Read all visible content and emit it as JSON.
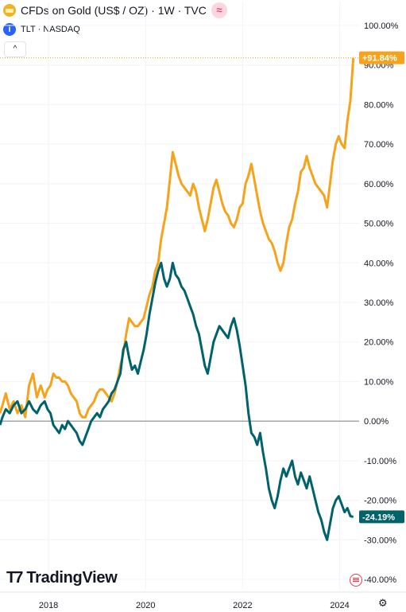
{
  "header": {
    "title": "CFDs on Gold (US$ / OZ) · 1W · TVC",
    "subtitle": "TLT · NASDAQ"
  },
  "colors": {
    "gold": "#f7a21b",
    "tlt": "#00636b",
    "zero_line": "#7e7e7e",
    "ref_line": "#f7a21b",
    "grid": "#f0f3fa"
  },
  "branding": {
    "logo_text": "TradingView"
  },
  "chart_data": {
    "type": "line",
    "xlim": [
      2017.0,
      2024.4
    ],
    "ylim": [
      -40,
      100
    ],
    "y_ticks": [
      "100.00%",
      "90.00%",
      "80.00%",
      "70.00%",
      "60.00%",
      "50.00%",
      "40.00%",
      "30.00%",
      "20.00%",
      "10.00%",
      "0.00%",
      "-10.00%",
      "-20.00%",
      "-30.00%",
      "-40.00%"
    ],
    "y_tick_values": [
      100,
      90,
      80,
      70,
      60,
      50,
      40,
      30,
      20,
      10,
      0,
      -10,
      -20,
      -30,
      -40
    ],
    "x_ticks": [
      "2018",
      "2020",
      "2022",
      "2024"
    ],
    "x_tick_values": [
      2018,
      2020,
      2022,
      2024
    ],
    "series": [
      {
        "color": "#f7a21b",
        "last_label": "+91.84%",
        "points": [
          [
            2017.0,
            2
          ],
          [
            2017.05,
            4
          ],
          [
            2017.12,
            7
          ],
          [
            2017.2,
            3
          ],
          [
            2017.28,
            5
          ],
          [
            2017.36,
            2
          ],
          [
            2017.44,
            4
          ],
          [
            2017.52,
            1
          ],
          [
            2017.6,
            9
          ],
          [
            2017.68,
            12
          ],
          [
            2017.76,
            6
          ],
          [
            2017.84,
            9
          ],
          [
            2017.92,
            6
          ],
          [
            2017.98,
            8
          ],
          [
            2018.04,
            9
          ],
          [
            2018.1,
            12
          ],
          [
            2018.16,
            11
          ],
          [
            2018.22,
            11
          ],
          [
            2018.28,
            10
          ],
          [
            2018.34,
            10
          ],
          [
            2018.4,
            9
          ],
          [
            2018.46,
            7
          ],
          [
            2018.52,
            6
          ],
          [
            2018.58,
            5
          ],
          [
            2018.64,
            2
          ],
          [
            2018.7,
            1
          ],
          [
            2018.76,
            1
          ],
          [
            2018.82,
            3
          ],
          [
            2018.88,
            4
          ],
          [
            2018.94,
            5
          ],
          [
            2019.0,
            7
          ],
          [
            2019.06,
            8
          ],
          [
            2019.12,
            8
          ],
          [
            2019.18,
            7
          ],
          [
            2019.24,
            6
          ],
          [
            2019.3,
            5
          ],
          [
            2019.36,
            7
          ],
          [
            2019.42,
            10
          ],
          [
            2019.48,
            14
          ],
          [
            2019.54,
            17
          ],
          [
            2019.6,
            22
          ],
          [
            2019.66,
            26
          ],
          [
            2019.72,
            25
          ],
          [
            2019.78,
            24
          ],
          [
            2019.84,
            24
          ],
          [
            2019.9,
            25
          ],
          [
            2019.96,
            26
          ],
          [
            2020.02,
            29
          ],
          [
            2020.08,
            32
          ],
          [
            2020.14,
            34
          ],
          [
            2020.2,
            38
          ],
          [
            2020.26,
            40
          ],
          [
            2020.32,
            46
          ],
          [
            2020.38,
            50
          ],
          [
            2020.44,
            54
          ],
          [
            2020.5,
            61
          ],
          [
            2020.56,
            68
          ],
          [
            2020.62,
            65
          ],
          [
            2020.68,
            62
          ],
          [
            2020.74,
            60
          ],
          [
            2020.8,
            59
          ],
          [
            2020.86,
            58
          ],
          [
            2020.92,
            57
          ],
          [
            2020.98,
            60
          ],
          [
            2021.04,
            58
          ],
          [
            2021.1,
            54
          ],
          [
            2021.16,
            51
          ],
          [
            2021.22,
            48
          ],
          [
            2021.28,
            51
          ],
          [
            2021.34,
            55
          ],
          [
            2021.4,
            59
          ],
          [
            2021.46,
            61
          ],
          [
            2021.52,
            58
          ],
          [
            2021.58,
            55
          ],
          [
            2021.64,
            53
          ],
          [
            2021.7,
            52
          ],
          [
            2021.76,
            50
          ],
          [
            2021.82,
            49
          ],
          [
            2021.88,
            51
          ],
          [
            2021.94,
            54
          ],
          [
            2022.0,
            55
          ],
          [
            2022.06,
            60
          ],
          [
            2022.12,
            62
          ],
          [
            2022.18,
            65
          ],
          [
            2022.24,
            61
          ],
          [
            2022.3,
            57
          ],
          [
            2022.36,
            53
          ],
          [
            2022.42,
            50
          ],
          [
            2022.48,
            48
          ],
          [
            2022.54,
            46
          ],
          [
            2022.6,
            45
          ],
          [
            2022.66,
            43
          ],
          [
            2022.72,
            40
          ],
          [
            2022.78,
            38
          ],
          [
            2022.84,
            40
          ],
          [
            2022.9,
            45
          ],
          [
            2022.96,
            49
          ],
          [
            2023.02,
            51
          ],
          [
            2023.08,
            55
          ],
          [
            2023.14,
            58
          ],
          [
            2023.2,
            63
          ],
          [
            2023.26,
            64
          ],
          [
            2023.32,
            67
          ],
          [
            2023.38,
            64
          ],
          [
            2023.44,
            62
          ],
          [
            2023.5,
            60
          ],
          [
            2023.56,
            59
          ],
          [
            2023.62,
            58
          ],
          [
            2023.68,
            57
          ],
          [
            2023.74,
            54
          ],
          [
            2023.8,
            60
          ],
          [
            2023.86,
            66
          ],
          [
            2023.92,
            70
          ],
          [
            2023.98,
            72
          ],
          [
            2024.04,
            70
          ],
          [
            2024.1,
            69
          ],
          [
            2024.16,
            76
          ],
          [
            2024.22,
            81
          ],
          [
            2024.28,
            91.84
          ]
        ]
      },
      {
        "color": "#00636b",
        "last_label": "-24.19%",
        "points": [
          [
            2017.0,
            -1
          ],
          [
            2017.05,
            1
          ],
          [
            2017.12,
            3
          ],
          [
            2017.2,
            2
          ],
          [
            2017.28,
            4
          ],
          [
            2017.36,
            5
          ],
          [
            2017.44,
            2
          ],
          [
            2017.52,
            3
          ],
          [
            2017.6,
            5
          ],
          [
            2017.68,
            3
          ],
          [
            2017.76,
            2
          ],
          [
            2017.84,
            4
          ],
          [
            2017.92,
            5
          ],
          [
            2017.98,
            3
          ],
          [
            2018.04,
            2
          ],
          [
            2018.1,
            -1
          ],
          [
            2018.16,
            -2
          ],
          [
            2018.22,
            -3
          ],
          [
            2018.28,
            -1
          ],
          [
            2018.34,
            -2
          ],
          [
            2018.4,
            0
          ],
          [
            2018.46,
            -1
          ],
          [
            2018.52,
            -2
          ],
          [
            2018.58,
            -3
          ],
          [
            2018.64,
            -5
          ],
          [
            2018.7,
            -6
          ],
          [
            2018.76,
            -4
          ],
          [
            2018.82,
            -2
          ],
          [
            2018.88,
            0
          ],
          [
            2018.94,
            1
          ],
          [
            2019.0,
            2
          ],
          [
            2019.06,
            1
          ],
          [
            2019.12,
            3
          ],
          [
            2019.18,
            4
          ],
          [
            2019.24,
            5
          ],
          [
            2019.3,
            7
          ],
          [
            2019.36,
            8
          ],
          [
            2019.42,
            10
          ],
          [
            2019.48,
            12
          ],
          [
            2019.54,
            18
          ],
          [
            2019.6,
            20
          ],
          [
            2019.66,
            16
          ],
          [
            2019.72,
            13
          ],
          [
            2019.78,
            14
          ],
          [
            2019.84,
            12
          ],
          [
            2019.9,
            15
          ],
          [
            2019.96,
            18
          ],
          [
            2020.02,
            22
          ],
          [
            2020.08,
            27
          ],
          [
            2020.14,
            31
          ],
          [
            2020.2,
            35
          ],
          [
            2020.26,
            38
          ],
          [
            2020.32,
            40
          ],
          [
            2020.38,
            36
          ],
          [
            2020.44,
            34
          ],
          [
            2020.5,
            36
          ],
          [
            2020.56,
            40
          ],
          [
            2020.62,
            37
          ],
          [
            2020.68,
            36
          ],
          [
            2020.74,
            34
          ],
          [
            2020.8,
            33
          ],
          [
            2020.86,
            31
          ],
          [
            2020.92,
            29
          ],
          [
            2020.98,
            27
          ],
          [
            2021.04,
            24
          ],
          [
            2021.1,
            22
          ],
          [
            2021.16,
            18
          ],
          [
            2021.22,
            14
          ],
          [
            2021.28,
            12
          ],
          [
            2021.34,
            16
          ],
          [
            2021.4,
            20
          ],
          [
            2021.46,
            22
          ],
          [
            2021.52,
            24
          ],
          [
            2021.58,
            23
          ],
          [
            2021.64,
            22
          ],
          [
            2021.7,
            21
          ],
          [
            2021.76,
            24
          ],
          [
            2021.82,
            26
          ],
          [
            2021.88,
            23
          ],
          [
            2021.94,
            19
          ],
          [
            2022.0,
            14
          ],
          [
            2022.06,
            9
          ],
          [
            2022.12,
            2
          ],
          [
            2022.18,
            -3
          ],
          [
            2022.24,
            -4
          ],
          [
            2022.3,
            -6
          ],
          [
            2022.36,
            -3
          ],
          [
            2022.42,
            -8
          ],
          [
            2022.48,
            -12
          ],
          [
            2022.54,
            -17
          ],
          [
            2022.6,
            -20
          ],
          [
            2022.66,
            -22
          ],
          [
            2022.72,
            -19
          ],
          [
            2022.78,
            -15
          ],
          [
            2022.84,
            -12
          ],
          [
            2022.9,
            -14
          ],
          [
            2022.96,
            -12
          ],
          [
            2023.02,
            -10
          ],
          [
            2023.08,
            -14
          ],
          [
            2023.14,
            -16
          ],
          [
            2023.2,
            -13
          ],
          [
            2023.26,
            -15
          ],
          [
            2023.32,
            -17
          ],
          [
            2023.38,
            -14
          ],
          [
            2023.44,
            -17
          ],
          [
            2023.5,
            -20
          ],
          [
            2023.56,
            -23
          ],
          [
            2023.62,
            -25
          ],
          [
            2023.68,
            -28
          ],
          [
            2023.74,
            -30
          ],
          [
            2023.8,
            -26
          ],
          [
            2023.86,
            -22
          ],
          [
            2023.92,
            -20
          ],
          [
            2023.98,
            -19
          ],
          [
            2024.04,
            -21
          ],
          [
            2024.1,
            -23
          ],
          [
            2024.16,
            -22
          ],
          [
            2024.22,
            -24
          ],
          [
            2024.28,
            -24.19
          ]
        ]
      }
    ]
  }
}
